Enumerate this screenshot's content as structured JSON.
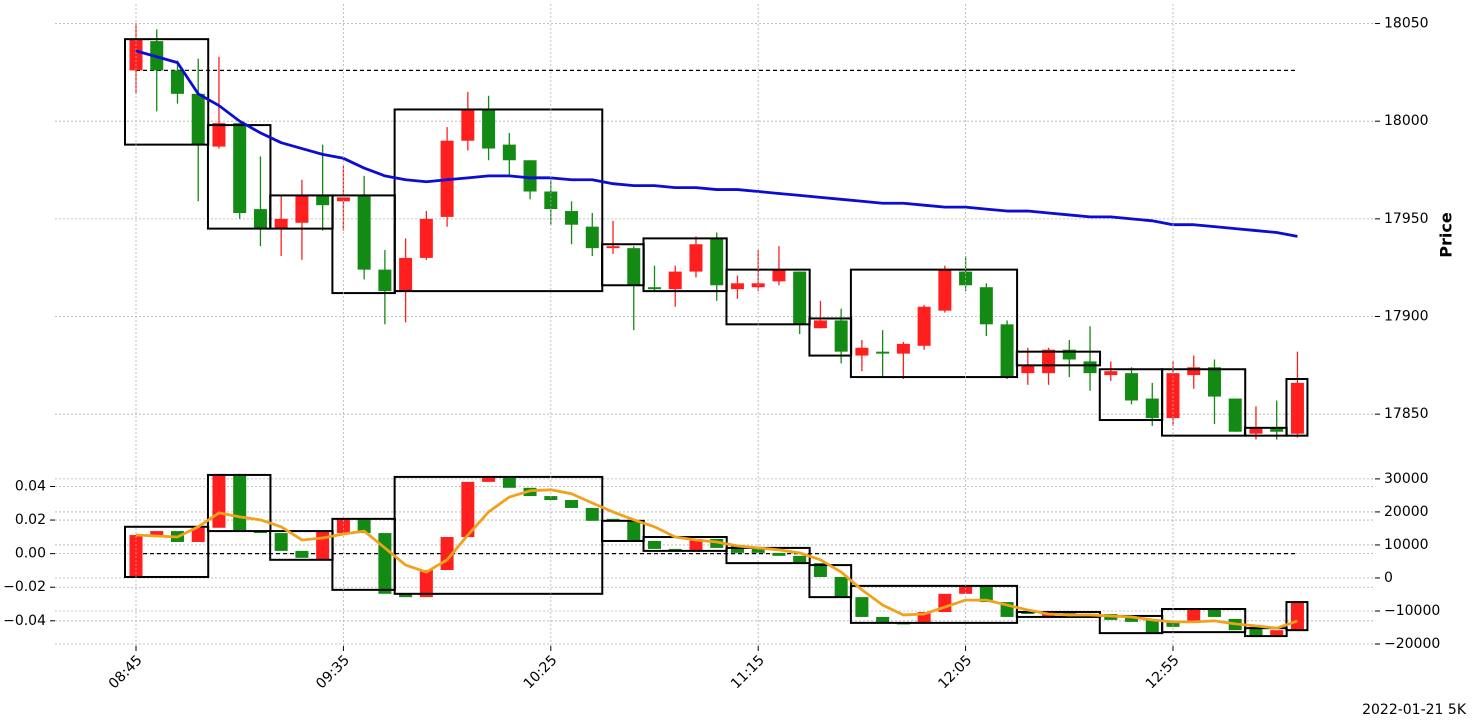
{
  "chart_data": [
    {
      "type": "candlestick",
      "ylabel": "Price",
      "up_color": "#ff1f1f",
      "down_color": "#138a13",
      "open": [
        18026,
        18041,
        18026,
        18014,
        17987,
        17999,
        17955,
        17945,
        17948,
        17962,
        17959,
        17962,
        17924,
        17913,
        17930,
        17951,
        17990,
        18006,
        17988,
        17980,
        17964,
        17954,
        17946,
        17935,
        17935,
        17915,
        17914,
        17923,
        17940,
        17914,
        17915,
        17918,
        17923,
        17894,
        17898,
        17880,
        17882,
        17881,
        17885,
        17903,
        17923,
        17915,
        17896,
        17871,
        17871,
        17883,
        17877,
        17870,
        17871,
        17858,
        17848,
        17870,
        17874,
        17858,
        17840,
        17843,
        17840
      ],
      "high": [
        18050,
        18047,
        18031,
        18032,
        18033,
        17999,
        17982,
        17962,
        17970,
        17988,
        17977,
        17972,
        17934,
        17940,
        17954,
        17997,
        18015,
        18013,
        17994,
        17980,
        17970,
        17959,
        17953,
        17949,
        17936,
        17926,
        17926,
        17941,
        17943,
        17921,
        17934,
        17936,
        17923,
        17908,
        17904,
        17888,
        17893,
        17887,
        17906,
        17926,
        17931,
        17917,
        17898,
        17884,
        17884,
        17888,
        17895,
        17877,
        17874,
        17866,
        17877,
        17880,
        17878,
        17858,
        17854,
        17857,
        17882
      ],
      "low": [
        18014,
        18005,
        18009,
        17959,
        17986,
        17950,
        17936,
        17931,
        17929,
        17944,
        17944,
        17919,
        17896,
        17897,
        17929,
        17946,
        17985,
        17980,
        17972,
        17960,
        17947,
        17937,
        17931,
        17932,
        17893,
        17913,
        17905,
        17920,
        17908,
        17909,
        17913,
        17916,
        17891,
        17894,
        17876,
        17872,
        17869,
        17868,
        17883,
        17902,
        17913,
        17890,
        17868,
        17865,
        17865,
        17869,
        17862,
        17867,
        17855,
        17844,
        17844,
        17863,
        17845,
        17841,
        17837,
        17837,
        17838
      ],
      "close": [
        18042,
        18026,
        18014,
        17988,
        17999,
        17953,
        17945,
        17950,
        17962,
        17957,
        17961,
        17924,
        17913,
        17930,
        17950,
        17990,
        18006,
        17986,
        17980,
        17964,
        17955,
        17947,
        17935,
        17936,
        17916,
        17914,
        17923,
        17937,
        17916,
        17917,
        17917,
        17924,
        17896,
        17898,
        17882,
        17884,
        17881,
        17886,
        17905,
        17924,
        17916,
        17896,
        17869,
        17875,
        17883,
        17878,
        17871,
        17872,
        17857,
        17848,
        17871,
        17874,
        17859,
        17841,
        17843,
        17841,
        17866
      ],
      "series": [
        {
          "color": "#0c0cd4",
          "values": [
            18036,
            18033,
            18030,
            18014,
            18008,
            18000,
            17994,
            17989,
            17986,
            17983,
            17981,
            17976,
            17972,
            17970,
            17969,
            17970,
            17971,
            17972,
            17972,
            17971,
            17971,
            17970,
            17970,
            17968,
            17967,
            17967,
            17966,
            17966,
            17965,
            17965,
            17964,
            17963,
            17962,
            17961,
            17960,
            17959,
            17958,
            17958,
            17957,
            17956,
            17956,
            17955,
            17954,
            17954,
            17953,
            17952,
            17951,
            17951,
            17950,
            17949,
            17947,
            17947,
            17946,
            17945,
            17944,
            17943,
            17941
          ]
        }
      ],
      "hline": {
        "value": 18026,
        "style": "dashed"
      },
      "boxes": [
        {
          "start": 0,
          "end": 3,
          "high": 18042,
          "low": 17988
        },
        {
          "start": 4,
          "end": 6,
          "high": 17998,
          "low": 17945
        },
        {
          "start": 7,
          "end": 9,
          "high": 17962,
          "low": 17945
        },
        {
          "start": 10,
          "end": 12,
          "high": 17962,
          "low": 17912
        },
        {
          "start": 13,
          "end": 22,
          "high": 18006,
          "low": 17913
        },
        {
          "start": 23,
          "end": 24,
          "high": 17937,
          "low": 17916
        },
        {
          "start": 25,
          "end": 28,
          "high": 17940,
          "low": 17913
        },
        {
          "start": 29,
          "end": 32,
          "high": 17924,
          "low": 17896
        },
        {
          "start": 33,
          "end": 34,
          "high": 17899,
          "low": 17880
        },
        {
          "start": 35,
          "end": 42,
          "high": 17924,
          "low": 17869
        },
        {
          "start": 43,
          "end": 46,
          "high": 17882,
          "low": 17875
        },
        {
          "start": 47,
          "end": 49,
          "high": 17873,
          "low": 17847
        },
        {
          "start": 50,
          "end": 53,
          "high": 17873,
          "low": 17839
        },
        {
          "start": 54,
          "end": 55,
          "high": 17843,
          "low": 17839
        },
        {
          "start": 56,
          "end": 56,
          "high": 17868,
          "low": 17839
        }
      ],
      "ylim": [
        17825,
        18060
      ],
      "yticks": [
        17850,
        17900,
        17950,
        18000,
        18050
      ],
      "grid": true
    },
    {
      "type": "candlestick",
      "candle_axis": "y2",
      "up_color": "#ff1f1f",
      "down_color": "#138a13",
      "categories": [
        "08:45",
        null,
        null,
        null,
        null,
        null,
        null,
        null,
        null,
        null,
        "09:35",
        null,
        null,
        null,
        null,
        null,
        null,
        null,
        null,
        null,
        "10:25",
        null,
        null,
        null,
        null,
        null,
        null,
        null,
        null,
        null,
        "11:15",
        null,
        null,
        null,
        null,
        null,
        null,
        null,
        null,
        null,
        "12:05",
        null,
        null,
        null,
        null,
        null,
        null,
        null,
        null,
        null,
        "12:55",
        null,
        null,
        null,
        null,
        null,
        null
      ],
      "open": [
        300,
        12700,
        14200,
        10900,
        15200,
        31500,
        14200,
        13600,
        8200,
        5500,
        13600,
        17900,
        13600,
        -4800,
        -5800,
        2400,
        12400,
        29100,
        30600,
        27300,
        24800,
        23600,
        21200,
        17900,
        17300,
        11200,
        8800,
        8200,
        11800,
        9700,
        8800,
        7600,
        6700,
        4500,
        300,
        -5800,
        -11800,
        -13600,
        -13600,
        -10300,
        -4800,
        -2400,
        -7300,
        -10300,
        -11800,
        -10300,
        -10900,
        -10900,
        -12100,
        -12700,
        -13000,
        -13300,
        -9400,
        -12400,
        -14800,
        -17600,
        -15800
      ],
      "close": [
        13000,
        14200,
        10900,
        15200,
        31500,
        14200,
        13600,
        8200,
        6100,
        14200,
        17900,
        13600,
        -4800,
        -5800,
        2400,
        12400,
        29100,
        30600,
        27300,
        24800,
        23600,
        21200,
        17300,
        17300,
        11200,
        8800,
        8200,
        11800,
        9100,
        7600,
        7600,
        6700,
        4500,
        300,
        -5800,
        -11800,
        -13600,
        -13900,
        -10300,
        -4800,
        -2400,
        -7300,
        -11800,
        -10900,
        -10300,
        -10900,
        -11800,
        -12700,
        -13300,
        -16700,
        -14800,
        -9400,
        -11800,
        -15800,
        -17600,
        -15800,
        -7300
      ],
      "series": [
        {
          "color": "#f0a21c",
          "axis": "y2",
          "values": [
            13000,
            12700,
            12400,
            15500,
            19700,
            18500,
            17600,
            15500,
            11500,
            12100,
            13300,
            14200,
            9100,
            3900,
            1800,
            5500,
            13000,
            20000,
            24500,
            26400,
            26700,
            25500,
            22700,
            20000,
            17600,
            15500,
            12400,
            11500,
            10900,
            9700,
            9100,
            8500,
            7600,
            5500,
            1800,
            -3600,
            -8200,
            -11200,
            -10900,
            -8800,
            -6700,
            -6700,
            -8200,
            -9700,
            -10900,
            -11200,
            -11200,
            -11500,
            -11800,
            -12700,
            -13300,
            -13300,
            -13000,
            -13900,
            -14500,
            -15200,
            -13000
          ]
        }
      ],
      "hline": {
        "value": 0,
        "style": "dashed"
      },
      "boxes": [
        {
          "start": 0,
          "end": 3,
          "high": 15500,
          "low": 300
        },
        {
          "start": 4,
          "end": 6,
          "high": 31200,
          "low": 14200
        },
        {
          "start": 7,
          "end": 9,
          "high": 14200,
          "low": 5500
        },
        {
          "start": 10,
          "end": 12,
          "high": 17900,
          "low": -3600
        },
        {
          "start": 13,
          "end": 22,
          "high": 30600,
          "low": -4800
        },
        {
          "start": 23,
          "end": 24,
          "high": 17300,
          "low": 11200
        },
        {
          "start": 25,
          "end": 28,
          "high": 12400,
          "low": 8200
        },
        {
          "start": 29,
          "end": 32,
          "high": 9100,
          "low": 4500
        },
        {
          "start": 33,
          "end": 34,
          "high": 3900,
          "low": -5800
        },
        {
          "start": 35,
          "end": 42,
          "high": -2400,
          "low": -13600
        },
        {
          "start": 43,
          "end": 46,
          "high": -10300,
          "low": -11800
        },
        {
          "start": 47,
          "end": 49,
          "high": -11500,
          "low": -16700
        },
        {
          "start": 50,
          "end": 53,
          "high": -9400,
          "low": -16400
        },
        {
          "start": 54,
          "end": 55,
          "high": -15200,
          "low": -17600
        },
        {
          "start": 56,
          "end": 56,
          "high": -7300,
          "low": -15800
        }
      ],
      "ylim": [
        -0.055,
        0.051
      ],
      "yticks": [
        {
          "value": -0.04,
          "label": "−0.04"
        },
        {
          "value": -0.02,
          "label": "−0.02"
        },
        {
          "value": 0,
          "label": "0.00"
        },
        {
          "value": 0.02,
          "label": "0.02"
        },
        {
          "value": 0.04,
          "label": "0.04"
        }
      ],
      "y2lim": [
        -20600,
        33300
      ],
      "y2ticks": [
        {
          "value": -20000,
          "label": "−20000"
        },
        {
          "value": -10000,
          "label": "−10000"
        },
        0,
        10000,
        20000,
        30000
      ],
      "grid": true
    }
  ],
  "footer": "2022-01-21 5K"
}
